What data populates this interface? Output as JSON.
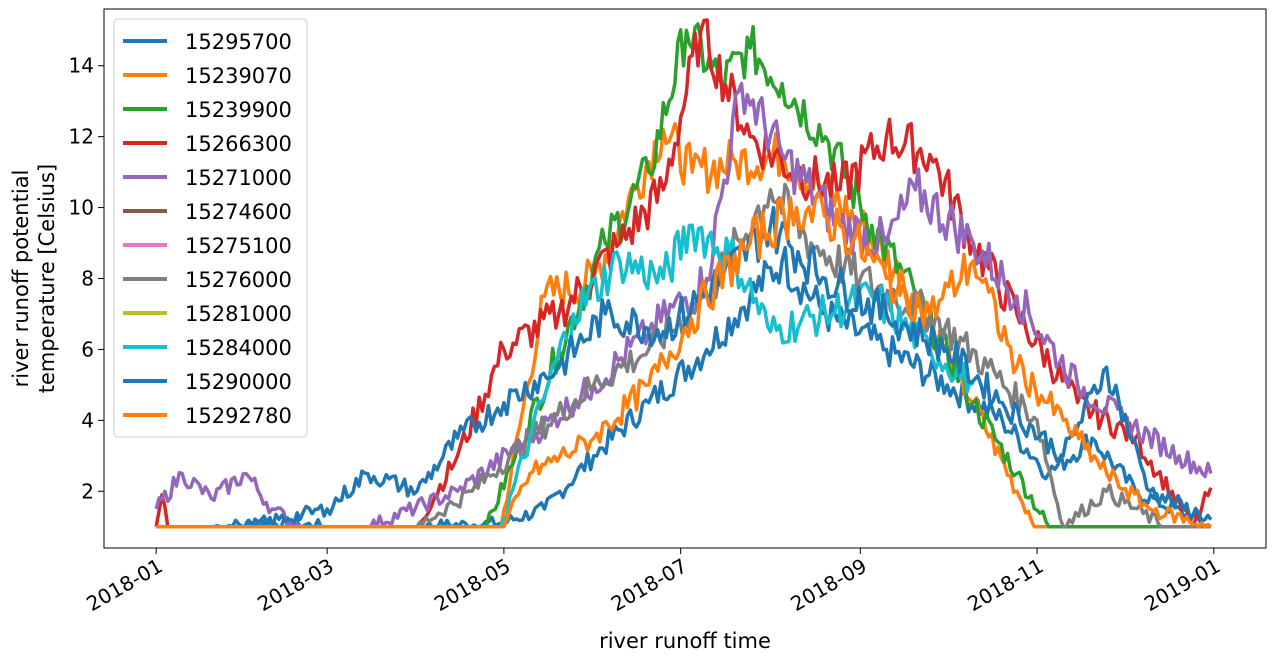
{
  "chart_data": {
    "type": "line",
    "title": "",
    "xlabel": "river runoff time",
    "ylabel_line1": "river runoff potential",
    "ylabel_line2": "temperature [Celsius]",
    "xlim": [
      "2017-12-14",
      "2019-01-19"
    ],
    "ylim": [
      0.4,
      15.6
    ],
    "x_ticks": [
      "2018-01-01",
      "2018-03-01",
      "2018-05-01",
      "2018-07-01",
      "2018-09-01",
      "2018-11-01",
      "2019-01-01"
    ],
    "x_tick_labels": [
      "2018-01",
      "2018-03",
      "2018-05",
      "2018-07",
      "2018-09",
      "2018-11",
      "2019-01"
    ],
    "y_ticks": [
      2,
      4,
      6,
      8,
      10,
      12,
      14
    ],
    "y_tick_labels": [
      "2",
      "4",
      "6",
      "8",
      "10",
      "12",
      "14"
    ],
    "grid": false,
    "legend_position": "upper-left",
    "series": [
      {
        "name": "15295700",
        "color": "#1f77b4",
        "points": [
          [
            "2018-01-01",
            1.0
          ],
          [
            "2018-01-20",
            1.0
          ],
          [
            "2018-02-10",
            1.1
          ],
          [
            "2018-03-01",
            1.0
          ],
          [
            "2018-04-01",
            1.0
          ],
          [
            "2018-04-30",
            1.1
          ],
          [
            "2018-05-15",
            1.5
          ],
          [
            "2018-06-01",
            3.0
          ],
          [
            "2018-06-20",
            4.5
          ],
          [
            "2018-07-10",
            6.0
          ],
          [
            "2018-07-25",
            7.5
          ],
          [
            "2018-08-05",
            8.5
          ],
          [
            "2018-08-20",
            7.0
          ],
          [
            "2018-09-10",
            6.0
          ],
          [
            "2018-10-01",
            5.0
          ],
          [
            "2018-10-20",
            4.0
          ],
          [
            "2018-11-05",
            2.5
          ],
          [
            "2018-11-20",
            3.5
          ],
          [
            "2018-12-05",
            2.0
          ],
          [
            "2018-12-31",
            1.0
          ]
        ]
      },
      {
        "name": "15239070",
        "color": "#ff7f0e",
        "points": [
          [
            "2018-01-01",
            1.0
          ],
          [
            "2018-04-30",
            1.0
          ],
          [
            "2018-05-15",
            7.5
          ],
          [
            "2018-06-01",
            8.0
          ],
          [
            "2018-06-15",
            10.5
          ],
          [
            "2018-06-25",
            12.2
          ],
          [
            "2018-07-05",
            11.0
          ],
          [
            "2018-07-20",
            11.3
          ],
          [
            "2018-08-05",
            11.5
          ],
          [
            "2018-08-20",
            10.5
          ],
          [
            "2018-09-01",
            9.5
          ],
          [
            "2018-09-20",
            7.5
          ],
          [
            "2018-10-10",
            4.5
          ],
          [
            "2018-10-25",
            2.0
          ],
          [
            "2018-11-01",
            1.0
          ],
          [
            "2018-12-31",
            1.0
          ]
        ]
      },
      {
        "name": "15239900",
        "color": "#2ca02c",
        "points": [
          [
            "2018-01-01",
            1.0
          ],
          [
            "2018-04-25",
            1.0
          ],
          [
            "2018-05-05",
            3.0
          ],
          [
            "2018-05-20",
            6.0
          ],
          [
            "2018-06-05",
            9.0
          ],
          [
            "2018-06-20",
            11.0
          ],
          [
            "2018-07-03",
            15.0
          ],
          [
            "2018-07-15",
            13.5
          ],
          [
            "2018-07-25",
            14.5
          ],
          [
            "2018-08-05",
            13.5
          ],
          [
            "2018-08-20",
            12.0
          ],
          [
            "2018-09-05",
            9.5
          ],
          [
            "2018-09-20",
            7.5
          ],
          [
            "2018-10-10",
            4.5
          ],
          [
            "2018-10-25",
            2.5
          ],
          [
            "2018-11-05",
            1.0
          ],
          [
            "2018-12-31",
            1.0
          ]
        ]
      },
      {
        "name": "15266300",
        "color": "#d62728",
        "points": [
          [
            "2018-01-01",
            1.0
          ],
          [
            "2018-01-03",
            1.9
          ],
          [
            "2018-01-05",
            1.0
          ],
          [
            "2018-04-01",
            1.0
          ],
          [
            "2018-04-15",
            3.0
          ],
          [
            "2018-05-01",
            6.0
          ],
          [
            "2018-05-20",
            7.0
          ],
          [
            "2018-06-10",
            9.0
          ],
          [
            "2018-06-25",
            10.5
          ],
          [
            "2018-07-08",
            15.0
          ],
          [
            "2018-07-25",
            12.0
          ],
          [
            "2018-08-10",
            11.0
          ],
          [
            "2018-08-25",
            10.5
          ],
          [
            "2018-09-10",
            12.0
          ],
          [
            "2018-09-25",
            11.5
          ],
          [
            "2018-10-10",
            9.0
          ],
          [
            "2018-10-25",
            7.0
          ],
          [
            "2018-11-15",
            4.5
          ],
          [
            "2018-12-05",
            3.5
          ],
          [
            "2018-12-25",
            1.0
          ],
          [
            "2018-12-31",
            2.1
          ]
        ]
      },
      {
        "name": "15271000",
        "color": "#9467bd",
        "points": [
          [
            "2018-01-01",
            1.5
          ],
          [
            "2018-01-10",
            2.5
          ],
          [
            "2018-01-20",
            1.8
          ],
          [
            "2018-02-01",
            2.5
          ],
          [
            "2018-02-10",
            1.5
          ],
          [
            "2018-02-20",
            1.0
          ],
          [
            "2018-03-15",
            1.0
          ],
          [
            "2018-04-15",
            2.0
          ],
          [
            "2018-05-10",
            3.5
          ],
          [
            "2018-06-01",
            5.0
          ],
          [
            "2018-06-20",
            6.5
          ],
          [
            "2018-07-10",
            8.0
          ],
          [
            "2018-07-22",
            13.5
          ],
          [
            "2018-08-05",
            11.5
          ],
          [
            "2018-08-25",
            9.5
          ],
          [
            "2018-09-10",
            9.0
          ],
          [
            "2018-09-20",
            10.5
          ],
          [
            "2018-10-10",
            9.0
          ],
          [
            "2018-10-25",
            7.5
          ],
          [
            "2018-11-15",
            5.0
          ],
          [
            "2018-12-01",
            4.0
          ],
          [
            "2018-12-20",
            3.0
          ],
          [
            "2018-12-31",
            2.5
          ]
        ]
      },
      {
        "name": "15274600",
        "color": "#8c564b",
        "points": []
      },
      {
        "name": "15275100",
        "color": "#e377c2",
        "points": []
      },
      {
        "name": "15276000",
        "color": "#7f7f7f",
        "points": [
          [
            "2018-01-01",
            1.0
          ],
          [
            "2018-04-01",
            1.0
          ],
          [
            "2018-04-20",
            2.0
          ],
          [
            "2018-05-10",
            3.5
          ],
          [
            "2018-06-01",
            5.0
          ],
          [
            "2018-06-20",
            6.0
          ],
          [
            "2018-07-10",
            7.5
          ],
          [
            "2018-08-01",
            10.5
          ],
          [
            "2018-08-15",
            9.0
          ],
          [
            "2018-09-01",
            8.0
          ],
          [
            "2018-09-25",
            7.0
          ],
          [
            "2018-10-15",
            5.5
          ],
          [
            "2018-11-01",
            4.0
          ],
          [
            "2018-11-10",
            1.0
          ],
          [
            "2018-11-25",
            2.0
          ],
          [
            "2018-12-15",
            1.0
          ],
          [
            "2018-12-31",
            1.0
          ]
        ]
      },
      {
        "name": "15281000",
        "color": "#bcbd22",
        "points": []
      },
      {
        "name": "15284000",
        "color": "#17becf",
        "points": [
          [
            "2018-01-01",
            1.0
          ],
          [
            "2018-04-30",
            1.0
          ],
          [
            "2018-05-10",
            3.5
          ],
          [
            "2018-05-25",
            7.0
          ],
          [
            "2018-06-10",
            8.5
          ],
          [
            "2018-06-25",
            8.0
          ],
          [
            "2018-07-05",
            9.5
          ],
          [
            "2018-07-20",
            8.5
          ],
          [
            "2018-08-01",
            6.5
          ],
          [
            "2018-08-20",
            7.0
          ],
          [
            "2018-09-05",
            7.5
          ],
          [
            "2018-09-25",
            6.0
          ],
          [
            "2018-10-10",
            5.0
          ]
        ]
      },
      {
        "name": "15290000",
        "color": "#1f77b4",
        "points": [
          [
            "2018-01-01",
            1.0
          ],
          [
            "2018-02-01",
            1.0
          ],
          [
            "2018-03-01",
            1.5
          ],
          [
            "2018-03-15",
            2.5
          ],
          [
            "2018-04-01",
            2.0
          ],
          [
            "2018-04-15",
            3.5
          ],
          [
            "2018-05-01",
            4.5
          ],
          [
            "2018-05-20",
            5.5
          ],
          [
            "2018-06-05",
            7.0
          ],
          [
            "2018-06-25",
            6.5
          ],
          [
            "2018-07-15",
            8.0
          ],
          [
            "2018-08-01",
            9.5
          ],
          [
            "2018-08-20",
            8.0
          ],
          [
            "2018-09-10",
            7.0
          ],
          [
            "2018-10-01",
            6.0
          ],
          [
            "2018-10-20",
            4.5
          ],
          [
            "2018-11-10",
            3.0
          ],
          [
            "2018-11-25",
            5.5
          ],
          [
            "2018-12-10",
            2.0
          ],
          [
            "2018-12-31",
            1.2
          ]
        ]
      },
      {
        "name": "15292780",
        "color": "#ff7f0e",
        "points": [
          [
            "2018-01-01",
            1.0
          ],
          [
            "2018-05-01",
            1.0
          ],
          [
            "2018-05-10",
            2.5
          ],
          [
            "2018-06-01",
            3.5
          ],
          [
            "2018-06-20",
            5.0
          ],
          [
            "2018-07-10",
            7.5
          ],
          [
            "2018-07-25",
            9.0
          ],
          [
            "2018-08-10",
            10.0
          ],
          [
            "2018-08-25",
            9.5
          ],
          [
            "2018-09-10",
            8.0
          ],
          [
            "2018-09-25",
            7.0
          ],
          [
            "2018-10-10",
            8.5
          ],
          [
            "2018-10-25",
            5.5
          ],
          [
            "2018-11-10",
            4.0
          ],
          [
            "2018-11-25",
            2.5
          ],
          [
            "2018-12-10",
            1.5
          ],
          [
            "2018-12-31",
            1.0
          ]
        ]
      }
    ]
  }
}
